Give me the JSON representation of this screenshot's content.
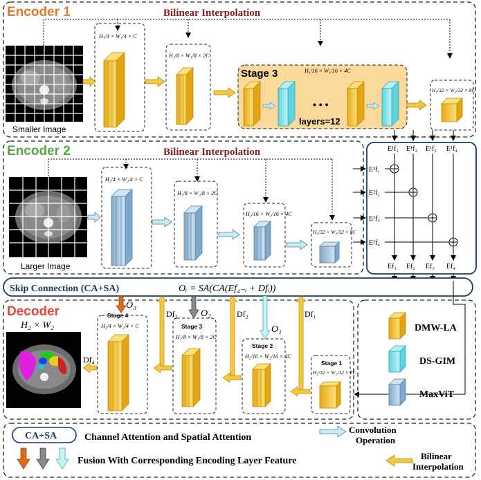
{
  "encoder1": {
    "title": "Encoder 1",
    "interp_label": "Bilinear Interpolation",
    "image_caption": "Smaller Image",
    "stage3_label": "Stage 3",
    "layers_label": "layers=12",
    "ellipsis": "• • •",
    "dims": [
      "H₁/4 × W₁/4 × C",
      "H₁/8 × W₁/8 × 2C",
      "H₁/16 × W₁/16 × 4C",
      "H₁/32 × W₁/32 × 8C"
    ]
  },
  "encoder2": {
    "title": "Encoder 2",
    "interp_label": "Bilinear Interpolation",
    "image_caption": "Larger Image",
    "dims": [
      "H₂/4 × W₂/4 × C",
      "H₂/8 × W₂/8 × 2C",
      "H₂/16 × W₂/16 × 4C",
      "H₂/32 × W₂/32 × 8C"
    ]
  },
  "fusion": {
    "top_labels": [
      "E¹f₁",
      "E¹f₂",
      "E¹f₃",
      "E¹f₄"
    ],
    "left_labels": [
      "E²f₁",
      "E²f₂",
      "E²f₃",
      "E²f₄"
    ],
    "bottom_labels": [
      "Ef₁",
      "Ef₂",
      "Ef₃",
      "Ef₄"
    ]
  },
  "skip": {
    "label": "Skip Connection (CA+SA)",
    "formula": "Oᵢ = SA(CA(Ef₄₋ᵢ + Dfᵢ))"
  },
  "decoder": {
    "title": "Decoder",
    "output_size": "H₂ × W₂",
    "stages": [
      "Stage 4",
      "Stage 3",
      "Stage 2",
      "Stage 1"
    ],
    "dims": [
      "H₂/4 × W₂/4 × C",
      "H₂/8 × W₂/8 × 2C",
      "H₂/16 × W₂/16 × 4C",
      "H₂/32 × W₂/32 × 8C"
    ],
    "o_labels": [
      "O₃",
      "O₂",
      "O₁"
    ],
    "d_labels": [
      "Df₃",
      "Df₂",
      "Df₁"
    ],
    "df4_label": "Df₄"
  },
  "legend": {
    "items": [
      "DMW-LA",
      "DS-GIM",
      "MaxViT"
    ],
    "block_colors": [
      "#f5c842",
      "#7fe3ec",
      "#a9c8e0"
    ]
  },
  "bottom_legend": {
    "ca_sa": "CA+SA",
    "ca_sa_desc": "Channel Attention and Spatial Attention",
    "conv_label": "Convolution Operation",
    "fusion_desc": "Fusion With Corresponding Encoding Layer Feature",
    "interp_label": "Bilinear Interpolation"
  },
  "colors": {
    "encoder1_title": "#e07b2a",
    "encoder2_title": "#5aa646",
    "decoder_title": "#e8453c",
    "interp_text": "#8b1a1a",
    "navy": "#1b3a6b",
    "yellow": "#f5c842",
    "cyan": "#7fe3ec",
    "blue": "#a9c8e0",
    "stage3_bg": "#fbd99a"
  }
}
